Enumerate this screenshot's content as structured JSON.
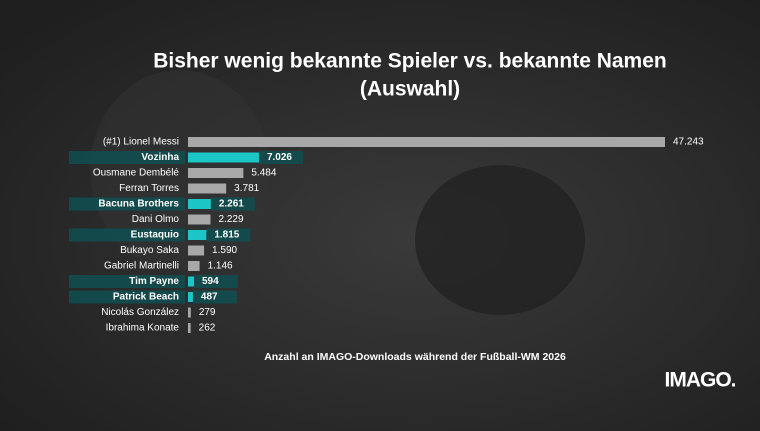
{
  "chart_data": {
    "type": "bar",
    "orientation": "horizontal",
    "title": [
      "Bisher wenig bekannte Spieler vs. bekannte Namen",
      "(Auswahl)"
    ],
    "categories": [
      "(#1)  Lionel Messi",
      "Vozinha",
      "Ousmane Dembélé",
      "Ferran Torres",
      "Bacuna Brothers",
      "Dani Olmo",
      "Eustaquio",
      "Bukayo Saka",
      "Gabriel Martinelli",
      "Tim Payne",
      "Patrick Beach",
      "Nicolás González",
      "Ibrahima Konate"
    ],
    "values": [
      47243,
      7026,
      5484,
      3781,
      2261,
      2229,
      1815,
      1590,
      1146,
      594,
      487,
      279,
      262
    ],
    "value_labels": [
      "47.243",
      "7.026",
      "5.484",
      "3.781",
      "2.261",
      "2.229",
      "1.815",
      "1.590",
      "1.146",
      "594",
      "487",
      "279",
      "262"
    ],
    "highlight": [
      false,
      true,
      false,
      false,
      true,
      false,
      true,
      false,
      false,
      true,
      true,
      false,
      false
    ],
    "color": "#a8a8a8",
    "highlight_color": "#1cc6c6",
    "note": "Anzahl an IMAGO-Downloads während der Fußball-WM 2026",
    "logo": "IMAGO."
  }
}
